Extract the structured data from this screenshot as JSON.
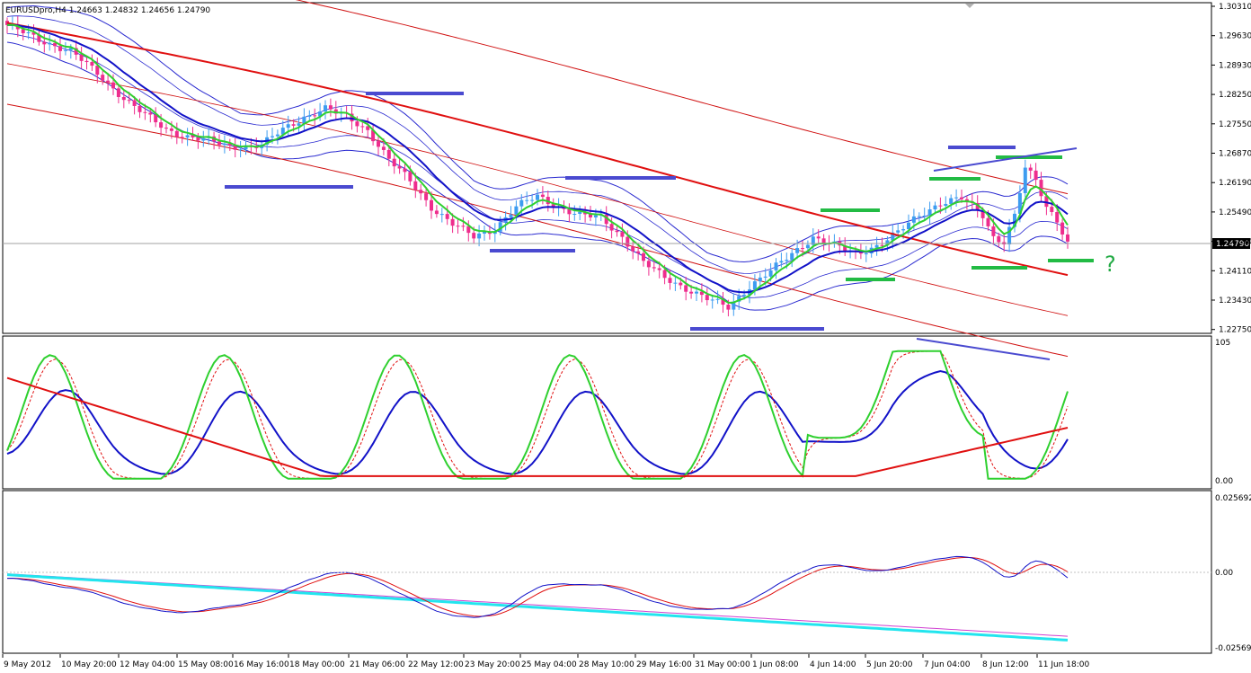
{
  "header": {
    "title": "EURUSDpro,H4  1.24663 1.24832 1.24656 1.24790"
  },
  "colors": {
    "bull_candle": "#3d9cf0",
    "bear_candle": "#ee2d8d",
    "ema_green": "#2fd02f",
    "ema_blue": "#1212c8",
    "ema_red": "#e01010",
    "bands_blue": "#2a2ad0",
    "bands_red": "#d01010",
    "level_blue": "#4a4ad0",
    "level_green": "#22bb44",
    "cyan": "#22e5ee",
    "magenta": "#d040d0",
    "question_mark": "#22aa44"
  },
  "price_axis": {
    "labels": [
      "1.30310",
      "1.29630",
      "1.28930",
      "1.28250",
      "1.27550",
      "1.26870",
      "1.26190",
      "1.25490",
      "1.24790",
      "1.24110",
      "1.23430",
      "1.22750"
    ],
    "current_price": "1.24790"
  },
  "stoch_axis": {
    "labels": [
      "105",
      "0.00"
    ]
  },
  "macd_axis": {
    "labels": [
      "0.025692",
      "0.00",
      "-0.025692"
    ]
  },
  "annotation": {
    "question_mark": "?"
  },
  "time_axis": {
    "labels": [
      "9 May 2012",
      "10 May 20:00",
      "12 May 04:00",
      "15 May 08:00",
      "16 May 16:00",
      "18 May 00:00",
      "21 May 06:00",
      "22 May 12:00",
      "23 May 20:00",
      "25 May 04:00",
      "28 May 10:00",
      "29 May 16:00",
      "31 May 00:00",
      "1 Jun 08:00",
      "4 Jun 14:00",
      "5 Jun 20:00",
      "7 Jun 04:00",
      "8 Jun 12:00",
      "11 Jun 18:00"
    ]
  },
  "chart_data": {
    "type": "candlestick",
    "symbol": "EURUSDpro,H4",
    "ohlc_shown": {
      "open": 1.24663,
      "high": 1.24832,
      "low": 1.24656,
      "close": 1.2479
    },
    "price_range": [
      1.2275,
      1.3031
    ],
    "close_path": [
      [
        0,
        1.2985
      ],
      [
        6,
        1.295
      ],
      [
        12,
        1.2925
      ],
      [
        18,
        1.286
      ],
      [
        22,
        1.2815
      ],
      [
        26,
        1.2775
      ],
      [
        30,
        1.274
      ],
      [
        34,
        1.2725
      ],
      [
        38,
        1.2715
      ],
      [
        42,
        1.27
      ],
      [
        48,
        1.2705
      ],
      [
        52,
        1.274
      ],
      [
        56,
        1.277
      ],
      [
        60,
        1.279
      ],
      [
        64,
        1.277
      ],
      [
        68,
        1.274
      ],
      [
        72,
        1.267
      ],
      [
        76,
        1.262
      ],
      [
        80,
        1.256
      ],
      [
        84,
        1.252
      ],
      [
        88,
        1.249
      ],
      [
        92,
        1.251
      ],
      [
        96,
        1.256
      ],
      [
        100,
        1.2585
      ],
      [
        104,
        1.256
      ],
      [
        108,
        1.254
      ],
      [
        112,
        1.2535
      ],
      [
        116,
        1.249
      ],
      [
        120,
        1.243
      ],
      [
        124,
        1.2395
      ],
      [
        128,
        1.237
      ],
      [
        132,
        1.2345
      ],
      [
        136,
        1.2325
      ],
      [
        140,
        1.2375
      ],
      [
        144,
        1.241
      ],
      [
        148,
        1.245
      ],
      [
        152,
        1.249
      ],
      [
        156,
        1.247
      ],
      [
        160,
        1.245
      ],
      [
        164,
        1.247
      ],
      [
        168,
        1.25
      ],
      [
        172,
        1.254
      ],
      [
        176,
        1.257
      ],
      [
        180,
        1.258
      ],
      [
        184,
        1.254
      ],
      [
        186,
        1.249
      ],
      [
        188,
        1.248
      ],
      [
        190,
        1.254
      ],
      [
        192,
        1.265
      ],
      [
        194,
        1.262
      ],
      [
        196,
        1.256
      ],
      [
        198,
        1.253
      ],
      [
        200,
        1.2479
      ]
    ],
    "indicators": [
      "EMA green",
      "EMA blue",
      "EMA red",
      "Bollinger bands blue",
      "Envelope bands red",
      "Stochastic",
      "MACD"
    ]
  }
}
